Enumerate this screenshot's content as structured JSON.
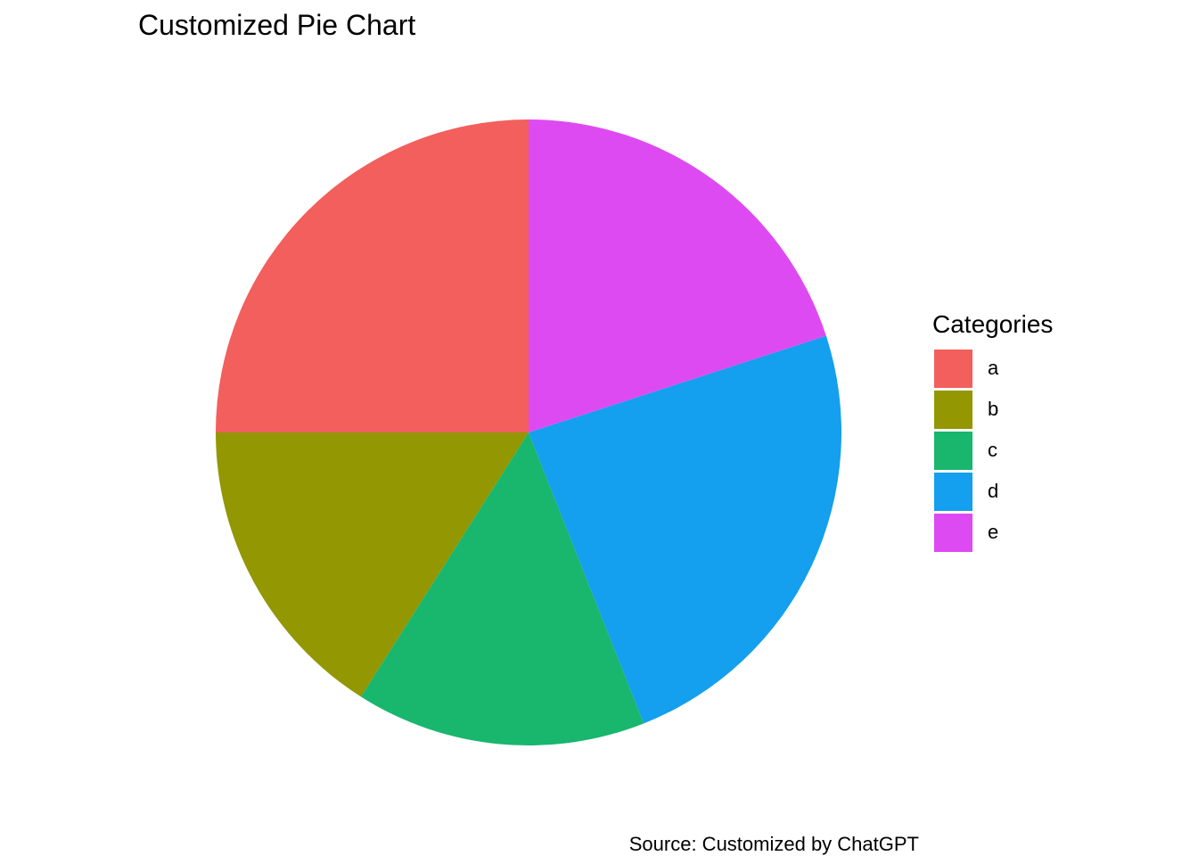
{
  "chart_data": {
    "type": "pie",
    "title": "Customized Pie Chart",
    "caption": "Source: Customized by ChatGPT",
    "legend_title": "Categories",
    "legend_position": "right",
    "slices": [
      {
        "label": "a",
        "value": 25,
        "color": "#F25F5C"
      },
      {
        "label": "b",
        "value": 16,
        "color": "#929702"
      },
      {
        "label": "c",
        "value": 15,
        "color": "#19B66E"
      },
      {
        "label": "d",
        "value": 24,
        "color": "#149FEF"
      },
      {
        "label": "e",
        "value": 20,
        "color": "#DE4AF2"
      }
    ]
  }
}
